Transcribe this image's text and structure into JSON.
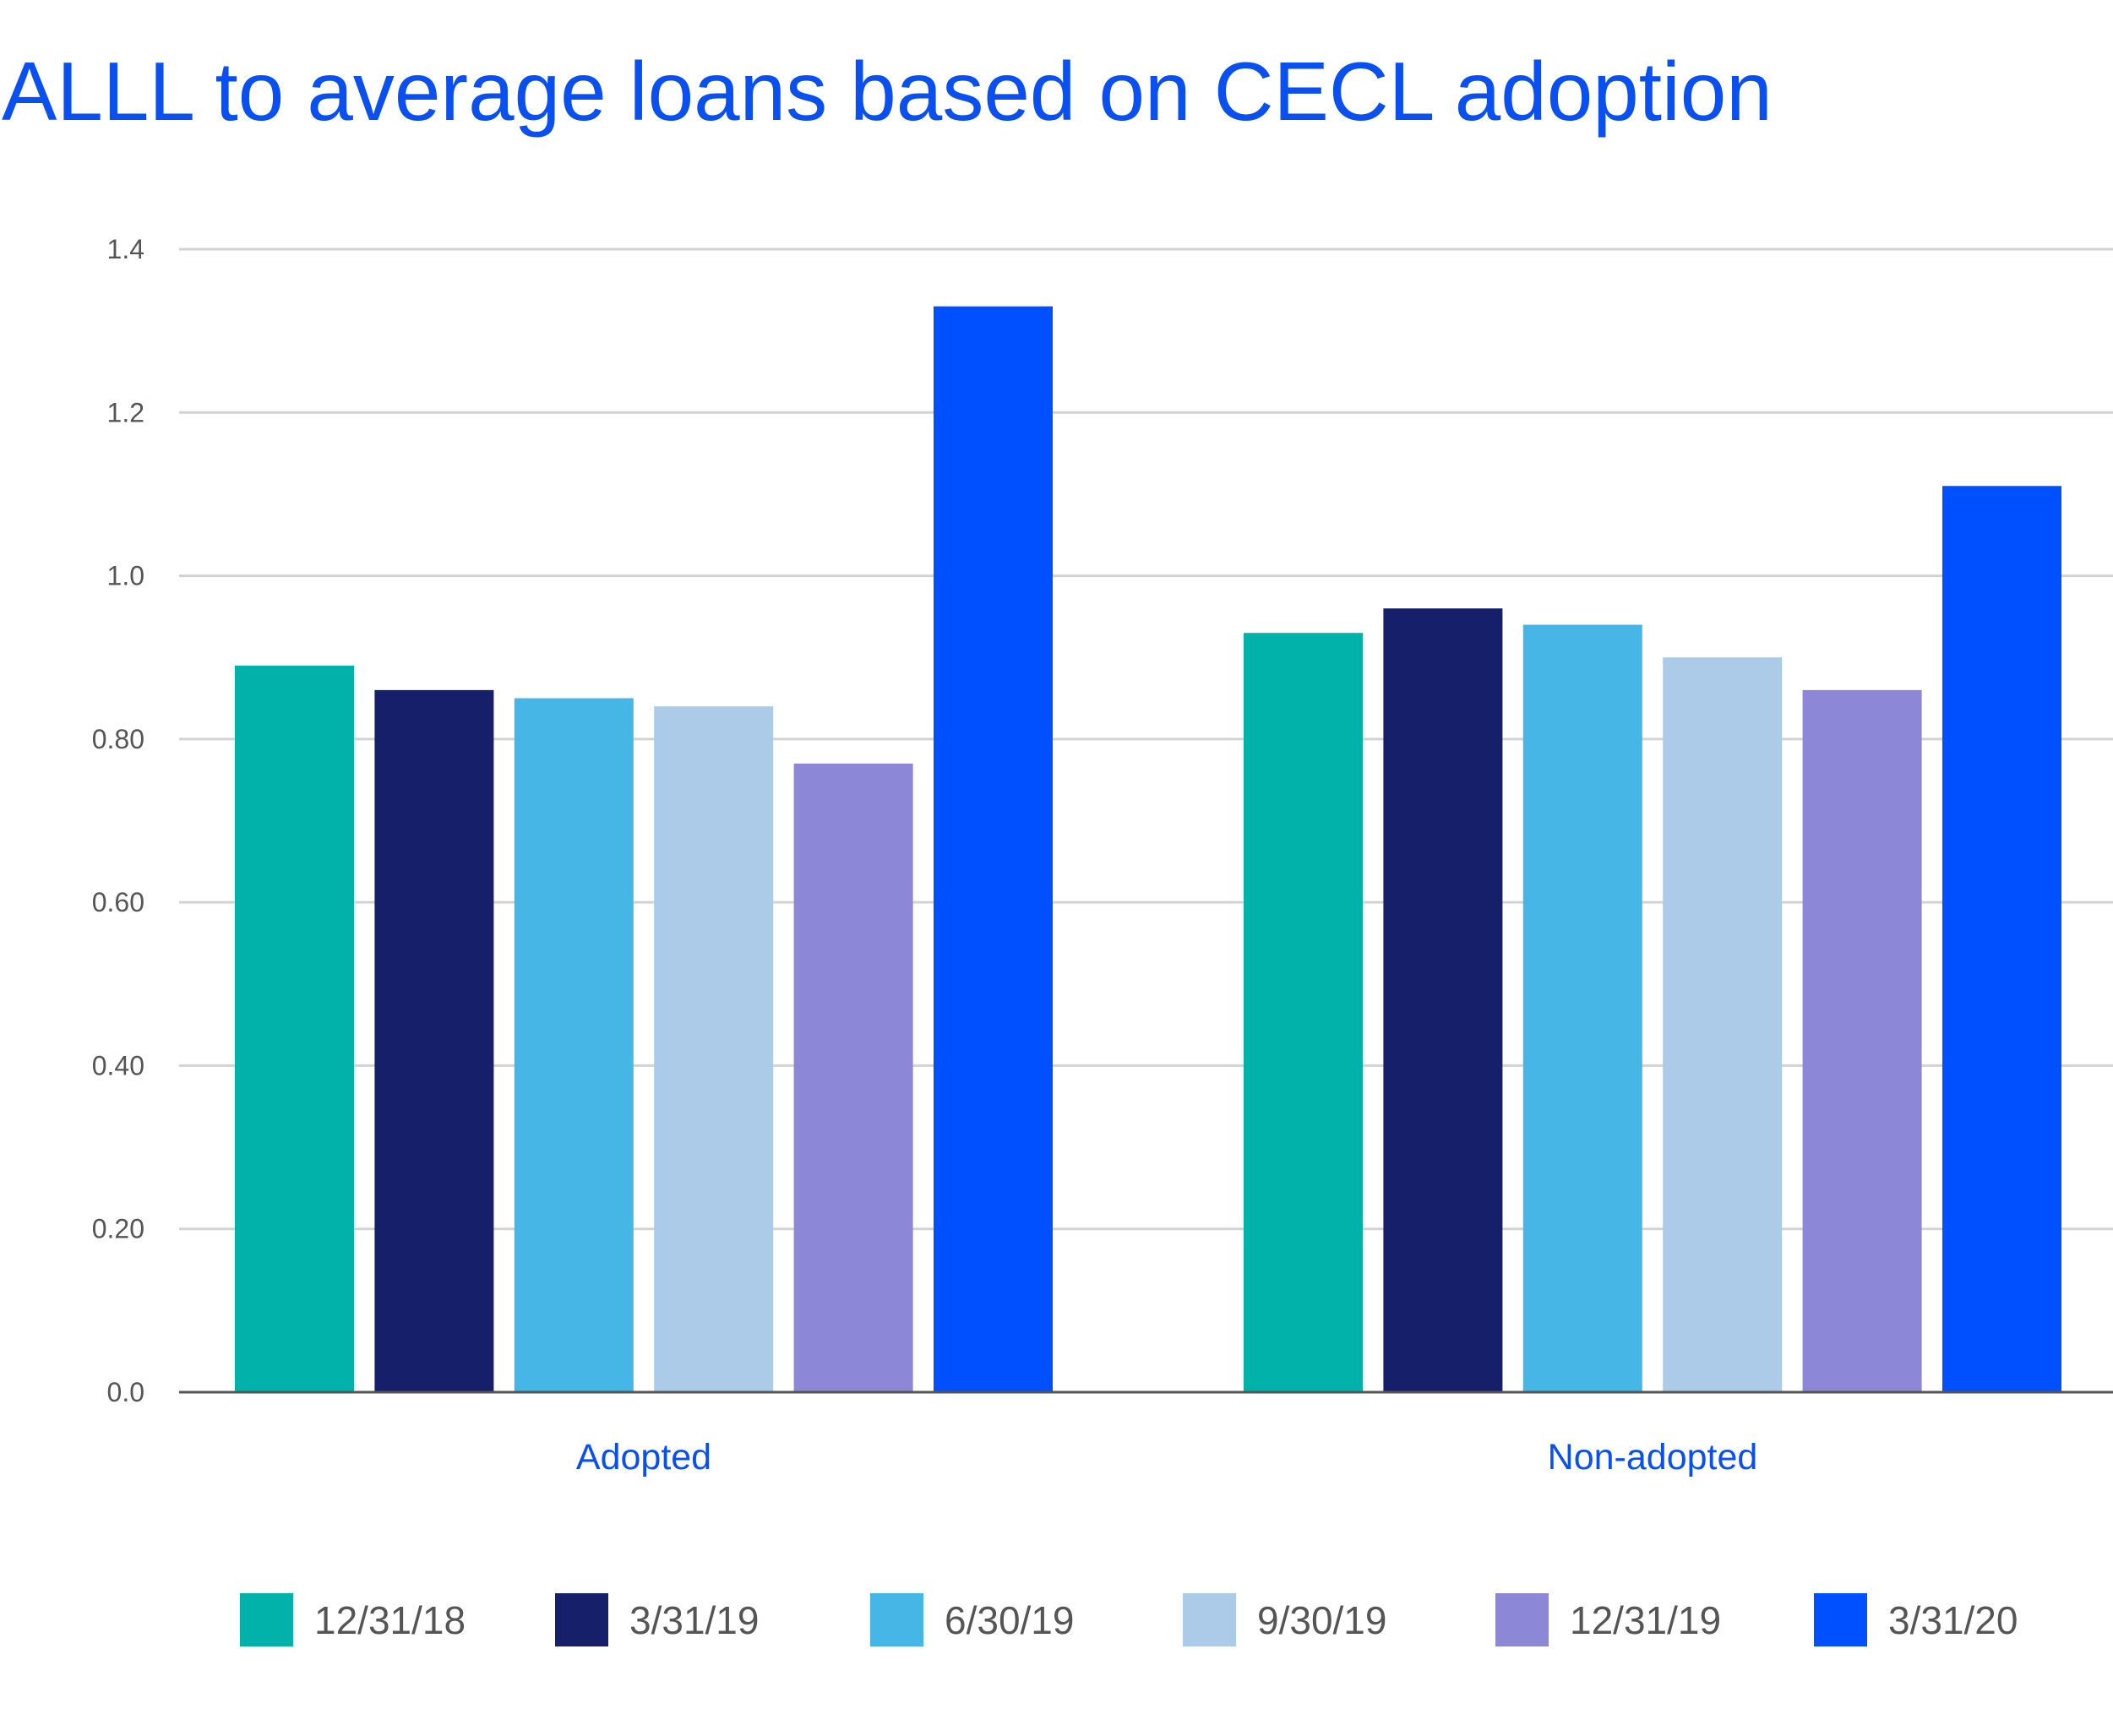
{
  "chart_data": {
    "type": "bar",
    "title": "ALLL to average loans based on CECL adoption",
    "xlabel": "",
    "ylabel": "",
    "ylim": [
      0,
      1.4
    ],
    "yticks": [
      0,
      0.2,
      0.4,
      0.6,
      0.8,
      1.0,
      1.2,
      1.4
    ],
    "ytick_labels": [
      "0.0",
      "0.20",
      "0.40",
      "0.60",
      "0.80",
      "1.0",
      "1.2",
      "1.4"
    ],
    "grid": true,
    "legend_position": "bottom",
    "categories": [
      "Adopted",
      "Non-adopted"
    ],
    "series": [
      {
        "name": "12/31/18",
        "color": "#00b2a9",
        "values": [
          0.89,
          0.93
        ]
      },
      {
        "name": "3/31/19",
        "color": "#161f6a",
        "values": [
          0.86,
          0.96
        ]
      },
      {
        "name": "6/30/19",
        "color": "#45b6e6",
        "values": [
          0.85,
          0.94
        ]
      },
      {
        "name": "9/30/19",
        "color": "#abcbe8",
        "values": [
          0.84,
          0.9
        ]
      },
      {
        "name": "12/31/19",
        "color": "#8d87d8",
        "values": [
          0.77,
          0.86
        ]
      },
      {
        "name": "3/31/20",
        "color": "#0050ff",
        "values": [
          1.33,
          1.11
        ]
      }
    ]
  }
}
